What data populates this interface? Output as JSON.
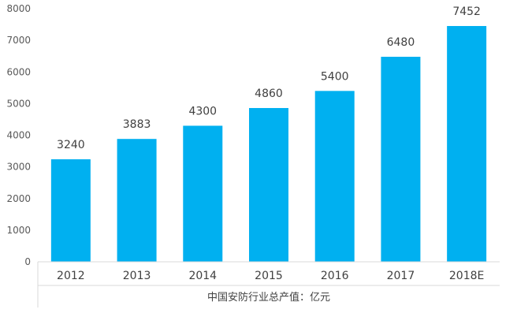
{
  "chart_data": {
    "type": "bar",
    "categories": [
      "2012",
      "2013",
      "2014",
      "2015",
      "2016",
      "2017",
      "2018E"
    ],
    "values": [
      3240,
      3883,
      4300,
      4860,
      5400,
      6480,
      7452
    ],
    "ylim": [
      0,
      8000
    ],
    "yticks": [
      "0",
      "1000",
      "2000",
      "3000",
      "4000",
      "5000",
      "6000",
      "7000",
      "8000"
    ],
    "series_name": "中国安防行业总产值：亿元",
    "bar_color": "#00B0F0",
    "grid": false,
    "legend": "bottom"
  }
}
